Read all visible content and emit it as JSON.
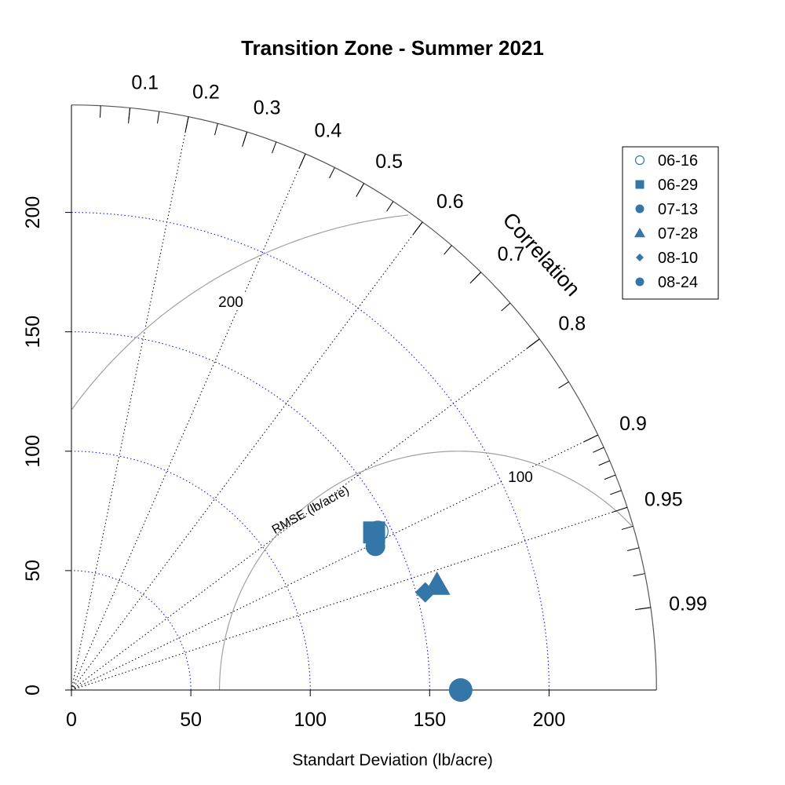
{
  "chart_data": {
    "type": "scatter",
    "subtype": "taylor-diagram",
    "title": "Transition Zone - Summer 2021",
    "xlabel": "Standart Deviation (lb/acre)",
    "ylabel": "",
    "correlation_label": "Correlation",
    "rmse_label": "RMSE (lb/acre)",
    "sd_ticks": [
      0,
      50,
      100,
      150,
      200
    ],
    "sd_max": 245,
    "sd_gridlines": [
      50,
      100,
      150,
      200
    ],
    "correlation_ticks": [
      "0.1",
      "0.2",
      "0.3",
      "0.4",
      "0.5",
      "0.6",
      "0.7",
      "0.8",
      "0.9",
      "0.95",
      "0.99"
    ],
    "correlation_gridlines": [
      0.2,
      0.4,
      0.6,
      0.8,
      0.9,
      0.95
    ],
    "reference_sd": 162,
    "rmse_contours": [
      {
        "value": 100,
        "label": "100"
      },
      {
        "value": 200,
        "label": "200"
      }
    ],
    "legend_position": "top-right",
    "series": [
      {
        "name": "06-16",
        "symbol": "open-circle",
        "sd": 144.5,
        "correlation": 0.888
      },
      {
        "name": "06-29",
        "symbol": "square",
        "sd": 142.9,
        "correlation": 0.887
      },
      {
        "name": "07-13",
        "symbol": "circle",
        "sd": 140.8,
        "correlation": 0.904
      },
      {
        "name": "07-28",
        "symbol": "triangle",
        "sd": 159.3,
        "correlation": 0.961
      },
      {
        "name": "08-10",
        "symbol": "diamond",
        "sd": 153.7,
        "correlation": 0.964
      },
      {
        "name": "08-24",
        "symbol": "filled-circle-large",
        "sd": 163,
        "correlation": 1.0
      }
    ],
    "colors": {
      "marker": "#3476a8",
      "axis": "#000000",
      "sd_grid": "#0000ff",
      "corr_grid": "#000000",
      "rmse": "#a0a0a0"
    }
  }
}
